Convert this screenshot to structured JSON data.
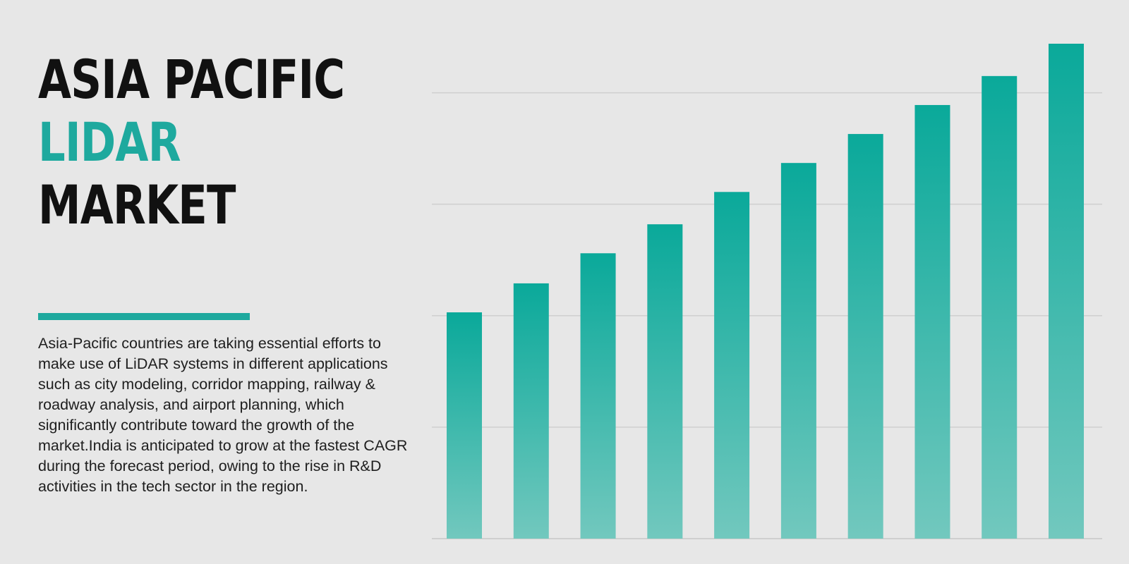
{
  "header": {
    "title_line1": "ASIA PACIFIC",
    "title_line2": "LIDAR",
    "title_line3": "MARKET"
  },
  "description": "Asia-Pacific countries are taking essential efforts to make use of LiDAR systems in different applications such as city modeling, corridor mapping, railway & roadway analysis, and airport planning, which significantly contribute toward the growth of the market.India is anticipated to grow at the fastest CAGR during the forecast period, owing to the rise in R&D activities in the tech sector in the region.",
  "colors": {
    "background": "#e7e7e7",
    "title_dark": "#111111",
    "accent": "#1ea99e",
    "bar_top": "#0aa99a",
    "bar_bottom": "#72c8be",
    "gridline": "#cfcfcf"
  },
  "chart_data": {
    "type": "bar",
    "categories": [
      "",
      "",
      "",
      "",
      "",
      "",
      "",
      "",
      "",
      ""
    ],
    "values": [
      2.03,
      2.29,
      2.56,
      2.82,
      3.11,
      3.37,
      3.63,
      3.89,
      4.15,
      4.44
    ],
    "ylim": [
      0,
      4.44
    ],
    "gridlines": [
      0,
      1,
      2,
      3,
      4
    ],
    "grid": true,
    "xlabel": "",
    "ylabel": ""
  }
}
